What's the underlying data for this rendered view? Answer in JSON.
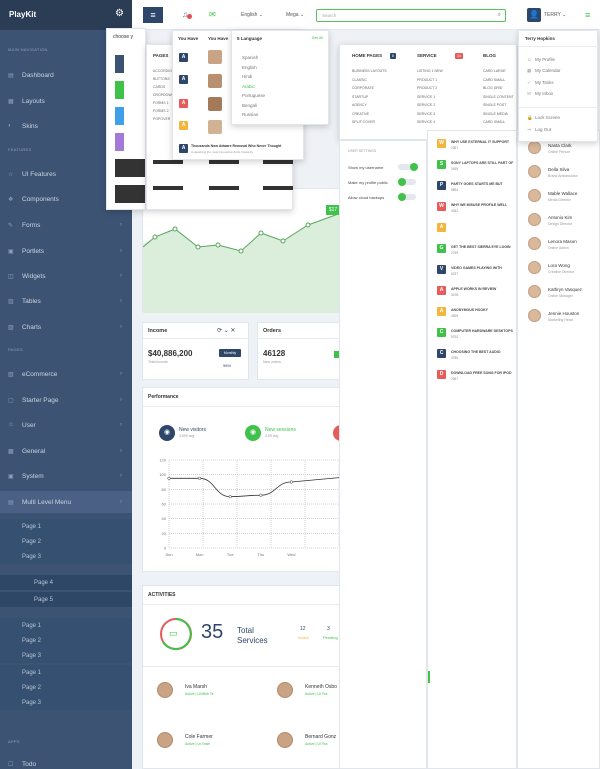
{
  "brand": {
    "name": "PlayKit"
  },
  "sidebar": {
    "sections": [
      "MAIN NAVIGATION",
      "FEATURES",
      "PAGES",
      "APPS"
    ],
    "items": [
      "Dashboard",
      "Layouts",
      "Skins",
      "UI Features",
      "Components",
      "Forms",
      "Portlets",
      "Widgets",
      "Tables",
      "Charts",
      "eCommerce",
      "Starter Page",
      "User",
      "General",
      "System",
      "Multi Level Menu"
    ],
    "sub1": [
      "Page 1",
      "Page 2",
      "Page 3"
    ],
    "sub2": [
      "Page 4",
      "Page 5"
    ],
    "sub3": [
      "Page 1",
      "Page 2",
      "Page 3",
      "Page 1",
      "Page 2",
      "Page 3"
    ],
    "apps": [
      "Todo"
    ]
  },
  "topbar": {
    "lang": "English",
    "mega": "Mega",
    "search_placeholder": "Search",
    "user": "TERRY"
  },
  "theme": {
    "title": "choose y"
  },
  "messages": {
    "header1": "You Have",
    "header2": "You Have",
    "header_right": "See All",
    "latest": "Thousands Now Adware Removal Who Never Thought",
    "latest_sub": "Unleashing the most Innovative Artist Capacity"
  },
  "languages": {
    "header": "5 Language",
    "items": [
      "Spanish",
      "English",
      "Hindi",
      "Arabic",
      "Portuguese",
      "Bengali",
      "Russian"
    ]
  },
  "pages_panel": {
    "title": "PAGES",
    "rows": [
      "ACCORDION",
      "BUTTONS",
      "CARDS",
      "DROPDOWN",
      "FORMS 1",
      "FORMS 2",
      "POPOVER"
    ]
  },
  "mega": {
    "cols": [
      {
        "title": "HOME PAGES",
        "count": "8",
        "items": [
          "BUSINESS LAYOUTS",
          "CLASSIC",
          "CORPORATE",
          "STARTUP",
          "AGENCY",
          "CREATIVE",
          "SPLIT COVER"
        ]
      },
      {
        "title": "SERVICE",
        "count": "14",
        "items": [
          "LISTING 1 NEW",
          "PRODUCT 1",
          "PRODUCT 2",
          "SERVICE 1",
          "SERVICE 2",
          "SERVICE 3",
          "SERVICE 4"
        ]
      },
      {
        "title": "BLOG",
        "count": "12",
        "items": [
          "CARD LARGE",
          "CARD SMALL",
          "BLOG GRID",
          "SINGLE CONTENT",
          "SINGLE POST",
          "SINGLE MEDIA",
          "CARD SMALL"
        ]
      }
    ],
    "settings_title": "USER SETTINGS",
    "settings": [
      "Show my username",
      "Make my profile public",
      "Allow cloud backups"
    ]
  },
  "feed": [
    {
      "letter": "W",
      "title": "WHY USE EXTERNAL IT SUPPORT",
      "sub": "2367",
      "color": "#f2b63c"
    },
    {
      "letter": "S",
      "title": "SONY LAPTOPS ARE STILL PART OF",
      "sub": "2495",
      "color": "#3fc14a"
    },
    {
      "letter": "P",
      "title": "PARTY GOES STARTS ME BUT",
      "sub": "5894",
      "color": "#2e4669"
    },
    {
      "letter": "W",
      "title": "WHY WE MISUSE PROFILE WELL",
      "sub": "3342",
      "color": "#e85b5b"
    },
    {
      "letter": "A",
      "title": "",
      "sub": "",
      "color": "#f2b63c"
    },
    {
      "letter": "G",
      "title": "GET THE BEST SIERRA EYE LOGIN",
      "sub": "2759",
      "color": "#3fc14a"
    },
    {
      "letter": "V",
      "title": "VIDEO GAMES PLAYING WITH",
      "sub": "5237",
      "color": "#2e4669"
    },
    {
      "letter": "A",
      "title": "APPLE WORKS IN REVIEW",
      "sub": "3478",
      "color": "#e85b5b"
    },
    {
      "letter": "A",
      "title": "ANONYMOUS HOOKY",
      "sub": "4909",
      "color": "#f2b63c"
    },
    {
      "letter": "C",
      "title": "COMPUTER HARDWARE DESKTOPS",
      "sub": "5792",
      "color": "#3fc14a"
    },
    {
      "letter": "C",
      "title": "CHOOSING THE BEST AUDIO",
      "sub": "3785",
      "color": "#2e4669"
    },
    {
      "letter": "D",
      "title": "DOWNLOAD FREE SONG FOR IPOD",
      "sub": "2367",
      "color": "#e85b5b"
    }
  ],
  "usermenu": {
    "name": "Terry Hopkins",
    "items": [
      "My Profile",
      "My Calendar",
      "My Tasks",
      "My Inbox",
      "Lock Screen",
      "Log Out"
    ]
  },
  "people": [
    {
      "name": "Nasta Clark",
      "role": "Online Person"
    },
    {
      "name": "Della Silva",
      "role": "Brand Ambassador"
    },
    {
      "name": "Mable Wallace",
      "role": "Media Director"
    },
    {
      "name": "Antonio Kim",
      "role": "Design Director"
    },
    {
      "name": "Lenora Mason",
      "role": "Online Admin"
    },
    {
      "name": "Lora Wong",
      "role": "Creative Director"
    },
    {
      "name": "Kathryn Vasquez",
      "role": "Online Manager"
    },
    {
      "name": "Jennie Houston",
      "role": "Marketing Head"
    }
  ],
  "income": {
    "title": "Income",
    "value": "$40,886,200",
    "label": "Total Income",
    "badge": "Monthly",
    "pct": "98%"
  },
  "orders": {
    "title": "Orders",
    "value": "46128",
    "label": "New orders"
  },
  "badge17": "$17",
  "performance": {
    "title": "Performance",
    "legend": [
      {
        "name": "New visitors",
        "sub": "3,599 avg"
      },
      {
        "name": "New sessions",
        "sub": "3,99 avg"
      }
    ],
    "yticks": [
      "120",
      "100",
      "80",
      "60",
      "40",
      "20",
      "0"
    ],
    "xticks": [
      "Sun",
      "Mon",
      "Tue",
      "Thu",
      "Wed"
    ]
  },
  "activities": {
    "title": "ACTIVITIES",
    "count": "35",
    "label1": "Total",
    "label2": "Services",
    "stat1": "12",
    "stat1_label": "Active",
    "stat2": "3",
    "stat2_label": "Pending"
  },
  "contacts": [
    {
      "name": "Iva Marsh",
      "status": "Active | UI/Web Te"
    },
    {
      "name": "Kenneth Osbo",
      "status": "Active | UI Tea"
    },
    {
      "name": "Cole Farmer",
      "status": "Active | UI Team"
    },
    {
      "name": "Bernard Gonz",
      "status": "Active | UI Tea"
    }
  ],
  "chart_data": {
    "type": "line",
    "x": [
      "Sun",
      "Mon",
      "Tue",
      "Thu",
      "Wed"
    ],
    "series": [
      {
        "values": [
          95,
          95,
          70,
          72,
          90
        ]
      }
    ],
    "ylim": [
      0,
      120
    ]
  }
}
